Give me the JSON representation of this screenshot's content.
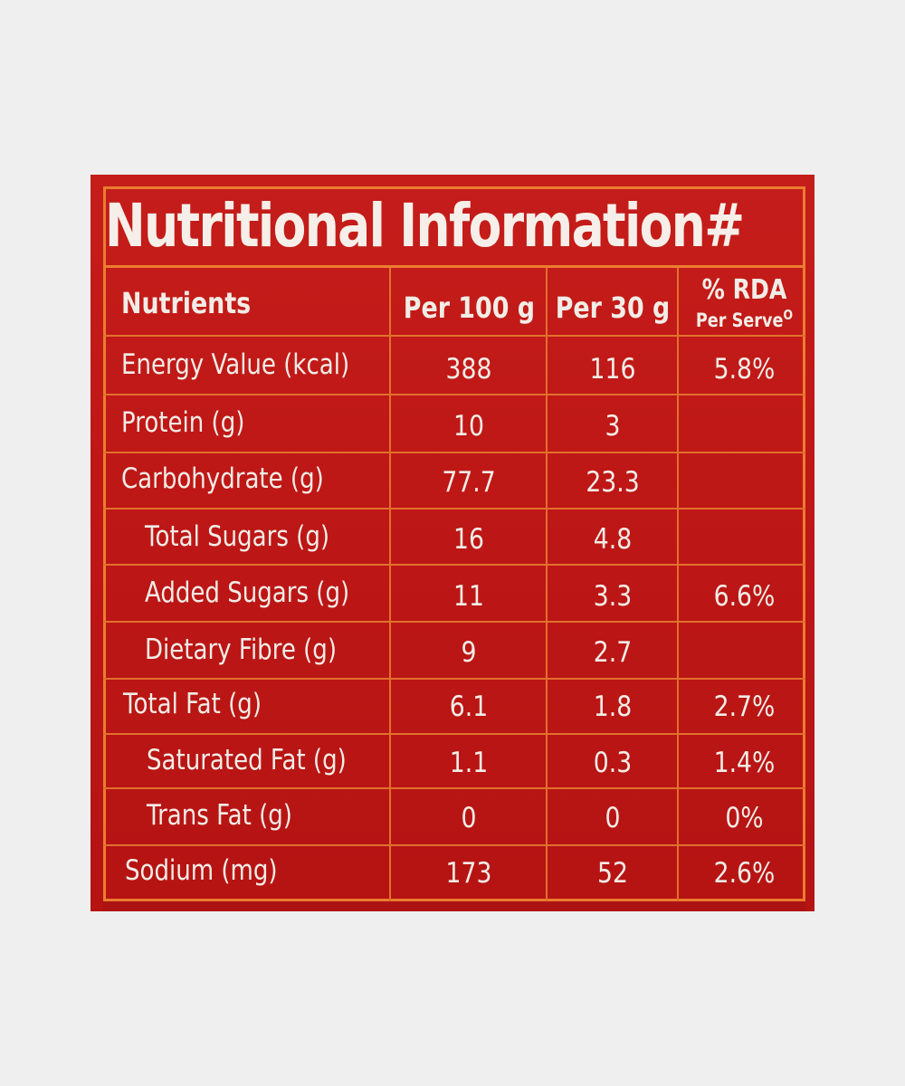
{
  "title": "Nutritional Information#",
  "headers": {
    "nutrients": "Nutrients",
    "per100": "Per 100 g",
    "per30": "Per 30 g",
    "rda": "% RDA",
    "rda_sub": "Per Serve",
    "rda_symbol": "O"
  },
  "rows": [
    {
      "name": "Energy Value (kcal)",
      "per100": "388",
      "per30": "116",
      "rda": "5.8%"
    },
    {
      "name": "Protein (g)",
      "per100": "10",
      "per30": "3",
      "rda": ""
    },
    {
      "name": "Carbohydrate (g)",
      "per100": "77.7",
      "per30": "23.3",
      "rda": ""
    },
    {
      "name": "Total Sugars (g)",
      "per100": "16",
      "per30": "4.8",
      "rda": ""
    },
    {
      "name": "Added Sugars (g)",
      "per100": "11",
      "per30": "3.3",
      "rda": "6.6%"
    },
    {
      "name": "Dietary Fibre (g)",
      "per100": "9",
      "per30": "2.7",
      "rda": ""
    },
    {
      "name": "Total Fat (g)",
      "per100": "6.1",
      "per30": "1.8",
      "rda": "2.7%"
    },
    {
      "name": "Saturated Fat (g)",
      "per100": "1.1",
      "per30": "0.3",
      "rda": "1.4%"
    },
    {
      "name": "Trans Fat (g)",
      "per100": "0",
      "per30": "0",
      "rda": "0%"
    },
    {
      "name": "Sodium (mg)",
      "per100": "173",
      "per30": "52",
      "rda": "2.6%"
    }
  ]
}
